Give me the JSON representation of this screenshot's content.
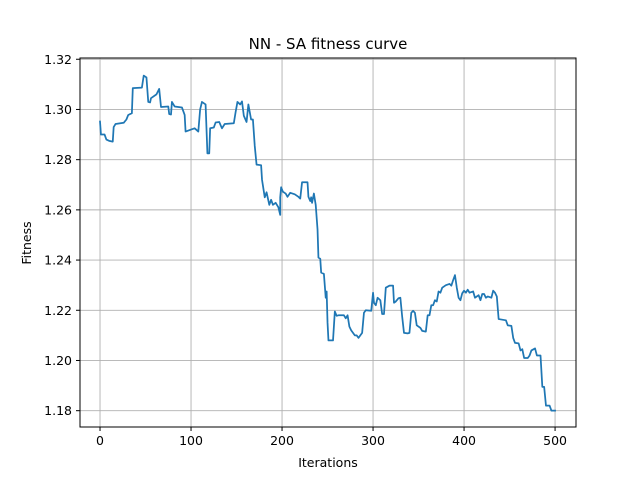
{
  "chart_data": {
    "type": "line",
    "title": "NN - SA fitness curve",
    "xlabel": "Iterations",
    "ylabel": "Fitness",
    "xlim": [
      -22,
      523
    ],
    "ylim": [
      1.1735,
      1.3205
    ],
    "xticks": [
      0,
      100,
      200,
      300,
      400,
      500
    ],
    "yticks": [
      1.18,
      1.2,
      1.22,
      1.24,
      1.26,
      1.28,
      1.3,
      1.32
    ],
    "ytick_labels": [
      "1.18",
      "1.20",
      "1.22",
      "1.24",
      "1.26",
      "1.28",
      "1.30",
      "1.32"
    ],
    "grid": true,
    "line_color": "#1f77b4",
    "series": [
      {
        "name": "",
        "points": [
          [
            0,
            1.2952
          ],
          [
            1,
            1.29
          ],
          [
            5,
            1.29
          ],
          [
            7,
            1.288
          ],
          [
            10,
            1.2875
          ],
          [
            14,
            1.2872
          ],
          [
            15,
            1.293
          ],
          [
            17,
            1.2942
          ],
          [
            26,
            1.2947
          ],
          [
            29,
            1.296
          ],
          [
            31,
            1.2978
          ],
          [
            35,
            1.2985
          ],
          [
            36,
            1.3085
          ],
          [
            46,
            1.3087
          ],
          [
            48,
            1.3135
          ],
          [
            50,
            1.313
          ],
          [
            51,
            1.3128
          ],
          [
            53,
            1.303
          ],
          [
            55,
            1.3028
          ],
          [
            56,
            1.3045
          ],
          [
            62,
            1.306
          ],
          [
            65,
            1.3082
          ],
          [
            67,
            1.301
          ],
          [
            75,
            1.3012
          ],
          [
            76,
            1.2982
          ],
          [
            78,
            1.298
          ],
          [
            79,
            1.303
          ],
          [
            82,
            1.3012
          ],
          [
            90,
            1.3008
          ],
          [
            93,
            1.2978
          ],
          [
            94,
            1.2912
          ],
          [
            100,
            1.292
          ],
          [
            104,
            1.2925
          ],
          [
            108,
            1.2912
          ],
          [
            110,
            1.3
          ],
          [
            112,
            1.303
          ],
          [
            116,
            1.302
          ],
          [
            118,
            1.2825
          ],
          [
            120,
            1.2825
          ],
          [
            121,
            1.2925
          ],
          [
            125,
            1.2928
          ],
          [
            127,
            1.2948
          ],
          [
            131,
            1.295
          ],
          [
            134,
            1.2925
          ],
          [
            137,
            1.2942
          ],
          [
            147,
            1.2945
          ],
          [
            149,
            1.299
          ],
          [
            151,
            1.303
          ],
          [
            154,
            1.302
          ],
          [
            156,
            1.3032
          ],
          [
            158,
            1.2975
          ],
          [
            161,
            1.295
          ],
          [
            163,
            1.302
          ],
          [
            166,
            1.296
          ],
          [
            168,
            1.296
          ],
          [
            170,
            1.2855
          ],
          [
            172,
            1.278
          ],
          [
            177,
            1.2778
          ],
          [
            178,
            1.272
          ],
          [
            181,
            1.265
          ],
          [
            183,
            1.267
          ],
          [
            186,
            1.262
          ],
          [
            188,
            1.264
          ],
          [
            190,
            1.262
          ],
          [
            193,
            1.2628
          ],
          [
            196,
            1.261
          ],
          [
            198,
            1.258
          ],
          [
            198,
            1.265
          ],
          [
            199,
            1.269
          ],
          [
            201,
            1.2672
          ],
          [
            204,
            1.2665
          ],
          [
            206,
            1.2652
          ],
          [
            209,
            1.2668
          ],
          [
            214,
            1.2662
          ],
          [
            218,
            1.2652
          ],
          [
            220,
            1.2645
          ],
          [
            222,
            1.271
          ],
          [
            228,
            1.271
          ],
          [
            229,
            1.2652
          ],
          [
            231,
            1.2635
          ],
          [
            232,
            1.265
          ],
          [
            233,
            1.2628
          ],
          [
            235,
            1.2665
          ],
          [
            237,
            1.262
          ],
          [
            239,
            1.2522
          ],
          [
            240,
            1.241
          ],
          [
            242,
            1.2405
          ],
          [
            243,
            1.235
          ],
          [
            246,
            1.2345
          ],
          [
            248,
            1.225
          ],
          [
            249,
            1.2275
          ],
          [
            250,
            1.215
          ],
          [
            251,
            1.208
          ],
          [
            256,
            1.208
          ],
          [
            258,
            1.2195
          ],
          [
            260,
            1.2178
          ],
          [
            262,
            1.218
          ],
          [
            268,
            1.218
          ],
          [
            270,
            1.2168
          ],
          [
            272,
            1.218
          ],
          [
            274,
            1.2135
          ],
          [
            276,
            1.212
          ],
          [
            280,
            1.21
          ],
          [
            282,
            1.21
          ],
          [
            284,
            1.209
          ],
          [
            288,
            1.211
          ],
          [
            290,
            1.219
          ],
          [
            292,
            1.22
          ],
          [
            298,
            1.2198
          ],
          [
            300,
            1.227
          ],
          [
            301,
            1.223
          ],
          [
            303,
            1.222
          ],
          [
            305,
            1.225
          ],
          [
            308,
            1.224
          ],
          [
            310,
            1.2185
          ],
          [
            312,
            1.2185
          ],
          [
            314,
            1.229
          ],
          [
            318,
            1.2298
          ],
          [
            322,
            1.2298
          ],
          [
            323,
            1.223
          ],
          [
            325,
            1.2235
          ],
          [
            328,
            1.2248
          ],
          [
            330,
            1.225
          ],
          [
            332,
            1.2175
          ],
          [
            334,
            1.211
          ],
          [
            338,
            1.2108
          ],
          [
            340,
            1.211
          ],
          [
            342,
            1.219
          ],
          [
            344,
            1.2198
          ],
          [
            346,
            1.219
          ],
          [
            348,
            1.214
          ],
          [
            352,
            1.213
          ],
          [
            354,
            1.2118
          ],
          [
            358,
            1.2115
          ],
          [
            360,
            1.218
          ],
          [
            362,
            1.218
          ],
          [
            364,
            1.222
          ],
          [
            366,
            1.222
          ],
          [
            368,
            1.224
          ],
          [
            370,
            1.2235
          ],
          [
            372,
            1.2275
          ],
          [
            374,
            1.227
          ],
          [
            376,
            1.229
          ],
          [
            380,
            1.23
          ],
          [
            384,
            1.2305
          ],
          [
            386,
            1.2298
          ],
          [
            388,
            1.232
          ],
          [
            390,
            1.234
          ],
          [
            392,
            1.229
          ],
          [
            394,
            1.225
          ],
          [
            396,
            1.224
          ],
          [
            398,
            1.2268
          ],
          [
            400,
            1.2278
          ],
          [
            402,
            1.227
          ],
          [
            404,
            1.2282
          ],
          [
            406,
            1.227
          ],
          [
            410,
            1.2275
          ],
          [
            412,
            1.225
          ],
          [
            416,
            1.226
          ],
          [
            418,
            1.224
          ],
          [
            420,
            1.2265
          ],
          [
            422,
            1.2265
          ],
          [
            424,
            1.225
          ],
          [
            426,
            1.2255
          ],
          [
            430,
            1.225
          ],
          [
            432,
            1.2278
          ],
          [
            434,
            1.227
          ],
          [
            436,
            1.2255
          ],
          [
            438,
            1.2165
          ],
          [
            446,
            1.216
          ],
          [
            448,
            1.214
          ],
          [
            452,
            1.2138
          ],
          [
            454,
            1.209
          ],
          [
            456,
            1.207
          ],
          [
            460,
            1.2068
          ],
          [
            462,
            1.204
          ],
          [
            464,
            1.2045
          ],
          [
            466,
            1.201
          ],
          [
            470,
            1.201
          ],
          [
            472,
            1.202
          ],
          [
            474,
            1.204
          ],
          [
            478,
            1.2048
          ],
          [
            480,
            1.202
          ],
          [
            484,
            1.202
          ],
          [
            486,
            1.1895
          ],
          [
            488,
            1.1895
          ],
          [
            490,
            1.182
          ],
          [
            494,
            1.182
          ],
          [
            496,
            1.18
          ],
          [
            500,
            1.18
          ]
        ]
      }
    ]
  }
}
